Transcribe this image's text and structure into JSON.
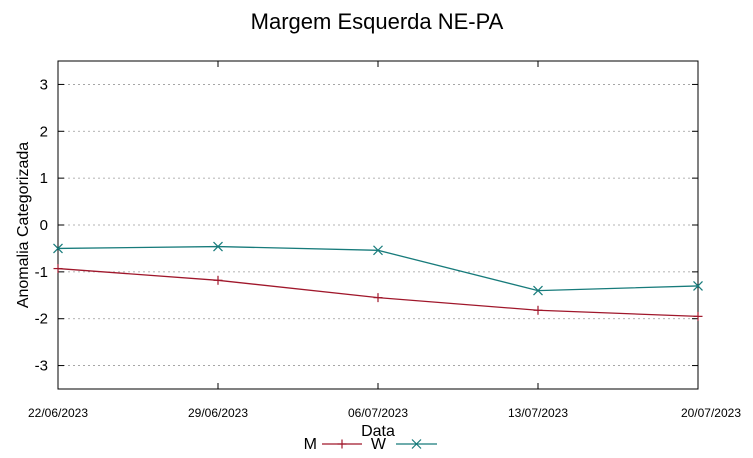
{
  "chart_data": {
    "type": "line",
    "title": "Margem Esquerda NE-PA",
    "xlabel": "Data",
    "ylabel": "Anomalia Categorizada",
    "x": [
      "22/06/2023",
      "29/06/2023",
      "06/07/2023",
      "13/07/2023",
      "20/07/2023"
    ],
    "ylim": [
      -3.5,
      3.5
    ],
    "yticks": [
      3,
      2,
      1,
      0,
      -1,
      -2,
      -3
    ],
    "grid": true,
    "legend": "bottom",
    "series": [
      {
        "name": "M",
        "color": "#a0172b",
        "marker": "plus",
        "values": [
          -0.93,
          -1.18,
          -1.55,
          -1.82,
          -1.95
        ]
      },
      {
        "name": "W",
        "color": "#177b7b",
        "marker": "cross",
        "values": [
          -0.5,
          -0.46,
          -0.54,
          -1.4,
          -1.3
        ]
      }
    ]
  }
}
